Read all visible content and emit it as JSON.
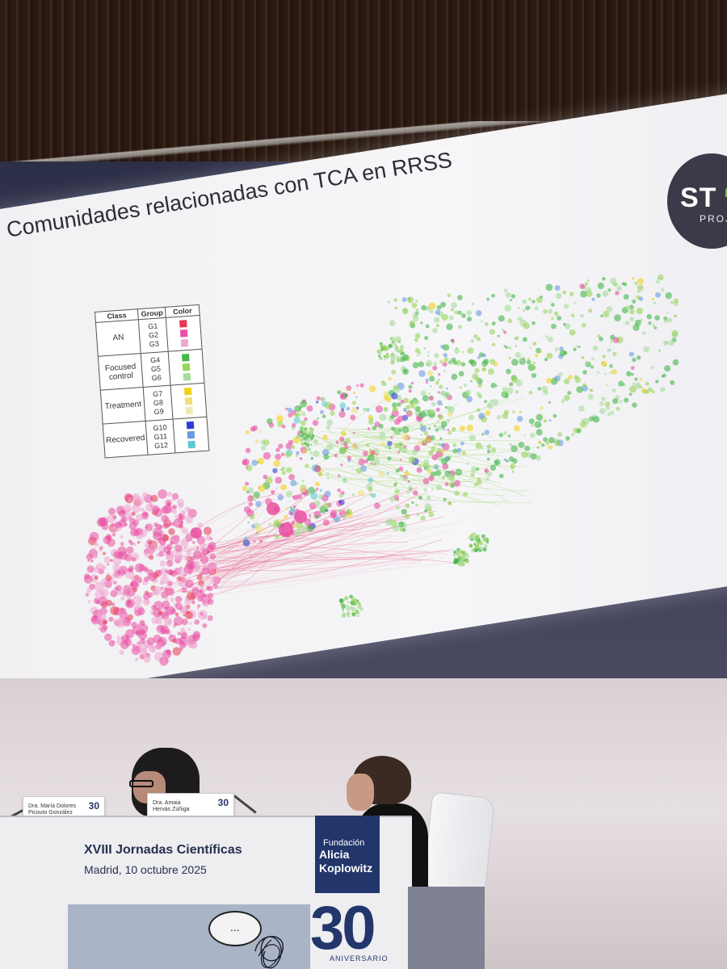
{
  "slide": {
    "title": "Comunidades relacionadas con TCA en RRSS",
    "logo_main": "ST",
    "logo_sub": "PROJ"
  },
  "legend": {
    "headers": [
      "Class",
      "Group",
      "Color"
    ],
    "rows": [
      {
        "class": "AN",
        "groups": [
          "G1",
          "G2",
          "G3"
        ],
        "colors": [
          "#e8384f",
          "#e94fa2",
          "#f0a4d0"
        ]
      },
      {
        "class": "Focused control",
        "groups": [
          "G4",
          "G5",
          "G6"
        ],
        "colors": [
          "#43b649",
          "#9ad35a",
          "#a6dc9a"
        ]
      },
      {
        "class": "Treatment",
        "groups": [
          "G7",
          "G8",
          "G9"
        ],
        "colors": [
          "#f2d21c",
          "#efe07a",
          "#f1e9b6"
        ]
      },
      {
        "class": "Recovered",
        "groups": [
          "G10",
          "G11",
          "G12"
        ],
        "colors": [
          "#2b3fd6",
          "#6b9be0",
          "#5ec9d6"
        ]
      }
    ]
  },
  "panel": {
    "heading": "XVIII Jornadas Científicas",
    "subheading": "Madrid, 10 octubre 2025",
    "brand_small": "Fundación",
    "brand_name": "Alicia Koplowitz",
    "brand_number": "30",
    "brand_anniversary": "ANIVERSARIO",
    "bubble_text": "..."
  },
  "nameplates": [
    {
      "line1": "Dra. María Dolores",
      "line2": "Picouto González",
      "logo": "30"
    },
    {
      "line1": "Dra. Amaia",
      "line2": "Hervás Zúñiga",
      "logo": "30"
    }
  ]
}
